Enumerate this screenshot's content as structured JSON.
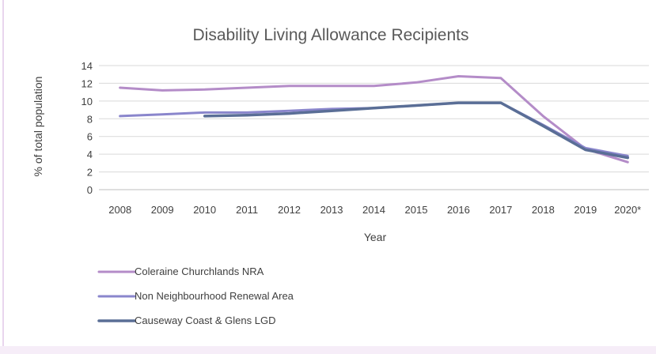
{
  "chart_data": {
    "type": "line",
    "title": "Disability Living Allowance Recipients",
    "xlabel": "Year",
    "ylabel": "% of total population",
    "categories": [
      "2008",
      "2009",
      "2010",
      "2011",
      "2012",
      "2013",
      "2014",
      "2015",
      "2016",
      "2017",
      "2018",
      "2019",
      "2020*"
    ],
    "ylim": [
      0,
      14
    ],
    "yticks": [
      "0",
      "2",
      "4",
      "6",
      "8",
      "10",
      "12",
      "14"
    ],
    "grid": true,
    "legend_position": "bottom-left",
    "series": [
      {
        "name": "Coleraine Churchlands NRA",
        "color": "#b48cc8",
        "values": [
          11.5,
          11.2,
          11.3,
          11.5,
          11.7,
          11.7,
          11.7,
          12.1,
          12.8,
          12.6,
          8.3,
          4.6,
          3.1
        ]
      },
      {
        "name": "Non Neighbourhood Renewal Area",
        "color": "#8a86cc",
        "values": [
          8.3,
          8.5,
          8.7,
          8.7,
          8.9,
          9.1,
          9.2,
          9.5,
          9.8,
          9.8,
          7.3,
          4.7,
          3.8
        ]
      },
      {
        "name": "Causeway Coast & Glens LGD",
        "color": "#5a6e96",
        "values": [
          null,
          null,
          8.3,
          8.4,
          8.6,
          8.9,
          9.2,
          9.5,
          9.8,
          9.8,
          7.2,
          4.5,
          3.6
        ]
      }
    ]
  }
}
